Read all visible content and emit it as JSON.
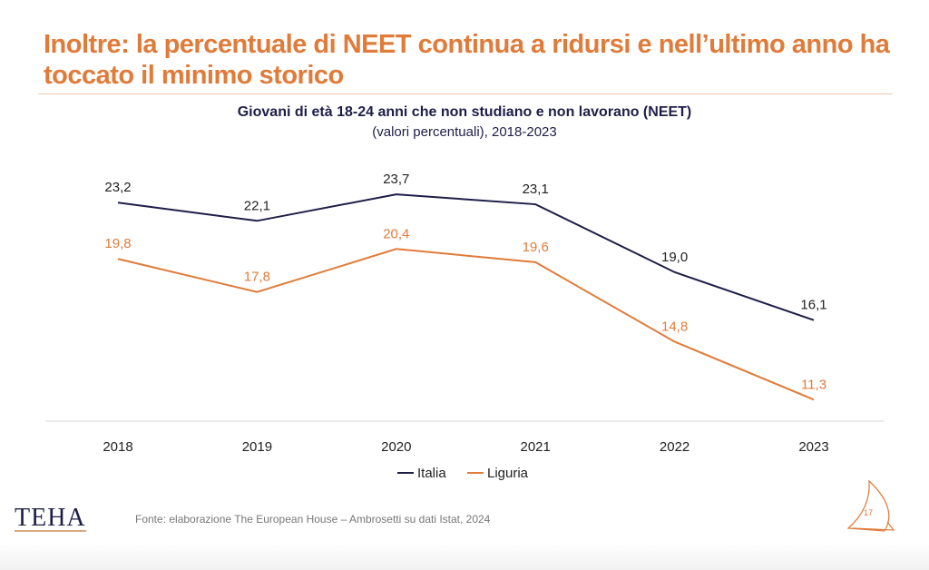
{
  "slide": {
    "title": "Inoltre: la percentuale di NEET continua a ridursi e nell’ultimo anno ha toccato il minimo storico",
    "source": "Fonte: elaborazione The European House – Ambrosetti su dati Istat, 2024",
    "logo": "TEHA",
    "page_number": "17"
  },
  "chart_data": {
    "type": "line",
    "title": "Giovani di età 18-24 anni che non studiano e non lavorano (NEET)",
    "subtitle": "(valori percentuali), 2018-2023",
    "categories": [
      "2018",
      "2019",
      "2020",
      "2021",
      "2022",
      "2023"
    ],
    "series": [
      {
        "name": "Italia",
        "color": "#1e1e48",
        "values": [
          23.2,
          22.1,
          23.7,
          23.1,
          19.0,
          16.1
        ],
        "labels": [
          "23,2",
          "22,1",
          "23,7",
          "23,1",
          "19,0",
          "16,1"
        ]
      },
      {
        "name": "Liguria",
        "color": "#e07b39",
        "values": [
          19.8,
          17.8,
          20.4,
          19.6,
          14.8,
          11.3
        ],
        "labels": [
          "19,8",
          "17,8",
          "20,4",
          "19,6",
          "14,8",
          "11,3"
        ]
      }
    ],
    "ylim": [
      10,
      25
    ],
    "grid": false,
    "legend": "bottom"
  }
}
